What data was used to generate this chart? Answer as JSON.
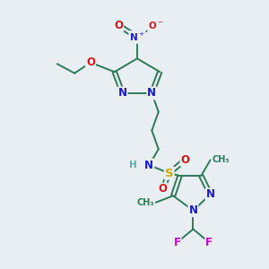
{
  "bg_color": "#e8eef2",
  "atom_colors": {
    "N": "#1a1acc",
    "O": "#cc1a1a",
    "S": "#ccaa00",
    "F": "#cc00cc",
    "C": "#2d7a5a",
    "H": "#5aadad",
    "default": "#2d7a5a"
  },
  "bond_color": "#2d7a5a",
  "lw": 1.4
}
